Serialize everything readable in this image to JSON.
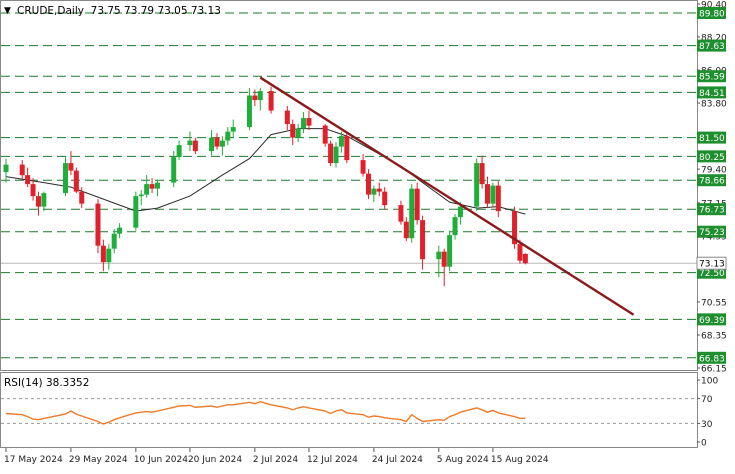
{
  "header": {
    "symbol": "CRUDE",
    "timeframe": "Daily",
    "ohlc_text": "73.75 73.79 73.05 73.13",
    "arrow_glyph": "▼"
  },
  "rsi_header": {
    "label": "RSI(14)",
    "value": "38.3352"
  },
  "colors": {
    "bull": "#1fae3a",
    "bear": "#e0202a",
    "trendline": "#8b1a1a",
    "ma": "#2b2b2b",
    "rsi": "#f07a28",
    "level_line": "#1a7a2a",
    "level_box": "#1e8f2e"
  },
  "chart_data": [
    {
      "type": "candlestick",
      "title": "CRUDE,Daily",
      "y_range": [
        66.15,
        90.4
      ],
      "y_ticks": [
        "90.40",
        "88.20",
        "86.00",
        "83.80",
        "81.50",
        "79.40",
        "77.15",
        "74.95",
        "72.50",
        "70.55",
        "68.35",
        "66.15"
      ],
      "x_ticks": [
        "17 May 2024",
        "29 May 2024",
        "10 Jun 2024",
        "20 Jun 2024",
        "2 Jul 2024",
        "12 Jul 2024",
        "24 Jul 2024",
        "5 Aug 2024",
        "15 Aug 2024"
      ],
      "grid": false,
      "price_levels": [
        "89.80",
        "87.63",
        "85.59",
        "84.51",
        "81.50",
        "80.25",
        "78.66",
        "76.73",
        "75.23",
        "72.50",
        "69.39",
        "66.83"
      ],
      "current_price": "73.13",
      "candles": [
        {
          "d": "2024-05-17",
          "o": 79.2,
          "h": 80.1,
          "l": 78.5,
          "c": 79.7
        },
        {
          "d": "2024-05-20",
          "o": 79.7,
          "h": 80.0,
          "l": 78.7,
          "c": 79.0
        },
        {
          "d": "2024-05-21",
          "o": 79.0,
          "h": 79.5,
          "l": 78.2,
          "c": 78.4
        },
        {
          "d": "2024-05-22",
          "o": 78.4,
          "h": 78.8,
          "l": 77.3,
          "c": 77.6
        },
        {
          "d": "2024-05-23",
          "o": 77.6,
          "h": 77.9,
          "l": 76.3,
          "c": 76.9
        },
        {
          "d": "2024-05-24",
          "o": 76.9,
          "h": 77.9,
          "l": 76.6,
          "c": 77.8
        },
        {
          "d": "2024-05-28",
          "o": 77.8,
          "h": 80.2,
          "l": 77.6,
          "c": 79.8
        },
        {
          "d": "2024-05-29",
          "o": 79.8,
          "h": 80.6,
          "l": 79.0,
          "c": 79.3
        },
        {
          "d": "2024-05-30",
          "o": 79.3,
          "h": 79.5,
          "l": 77.8,
          "c": 77.9
        },
        {
          "d": "2024-05-31",
          "o": 77.9,
          "h": 78.2,
          "l": 76.8,
          "c": 77.1
        },
        {
          "d": "2024-06-03",
          "o": 77.1,
          "h": 77.4,
          "l": 73.8,
          "c": 74.3
        },
        {
          "d": "2024-06-04",
          "o": 74.3,
          "h": 74.7,
          "l": 72.6,
          "c": 73.2
        },
        {
          "d": "2024-06-05",
          "o": 73.2,
          "h": 74.4,
          "l": 72.7,
          "c": 74.1
        },
        {
          "d": "2024-06-06",
          "o": 74.1,
          "h": 75.4,
          "l": 73.8,
          "c": 75.1
        },
        {
          "d": "2024-06-07",
          "o": 75.1,
          "h": 75.8,
          "l": 74.8,
          "c": 75.5
        },
        {
          "d": "2024-06-10",
          "o": 75.5,
          "h": 77.9,
          "l": 75.3,
          "c": 77.6
        },
        {
          "d": "2024-06-11",
          "o": 77.6,
          "h": 78.0,
          "l": 77.0,
          "c": 77.7
        },
        {
          "d": "2024-06-12",
          "o": 77.7,
          "h": 79.0,
          "l": 77.5,
          "c": 78.4
        },
        {
          "d": "2024-06-13",
          "o": 78.4,
          "h": 78.8,
          "l": 77.8,
          "c": 78.1
        },
        {
          "d": "2024-06-14",
          "o": 78.1,
          "h": 78.7,
          "l": 77.6,
          "c": 78.5
        },
        {
          "d": "2024-06-17",
          "o": 78.5,
          "h": 80.6,
          "l": 78.2,
          "c": 80.2
        },
        {
          "d": "2024-06-18",
          "o": 80.2,
          "h": 81.3,
          "l": 80.0,
          "c": 81.0
        },
        {
          "d": "2024-06-20",
          "o": 81.0,
          "h": 81.9,
          "l": 80.6,
          "c": 81.3
        },
        {
          "d": "2024-06-21",
          "o": 81.3,
          "h": 81.5,
          "l": 80.4,
          "c": 80.6
        },
        {
          "d": "2024-06-24",
          "o": 80.6,
          "h": 82.0,
          "l": 80.3,
          "c": 81.5
        },
        {
          "d": "2024-06-25",
          "o": 81.5,
          "h": 81.8,
          "l": 80.7,
          "c": 80.9
        },
        {
          "d": "2024-06-26",
          "o": 80.9,
          "h": 81.6,
          "l": 80.3,
          "c": 81.3
        },
        {
          "d": "2024-06-27",
          "o": 81.3,
          "h": 82.2,
          "l": 81.0,
          "c": 81.9
        },
        {
          "d": "2024-06-28",
          "o": 81.9,
          "h": 82.7,
          "l": 81.5,
          "c": 82.2
        },
        {
          "d": "2024-07-01",
          "o": 82.2,
          "h": 84.8,
          "l": 82.0,
          "c": 84.3
        },
        {
          "d": "2024-07-02",
          "o": 84.3,
          "h": 84.7,
          "l": 83.6,
          "c": 84.0
        },
        {
          "d": "2024-07-03",
          "o": 84.0,
          "h": 84.8,
          "l": 83.3,
          "c": 84.6
        },
        {
          "d": "2024-07-05",
          "o": 84.6,
          "h": 84.9,
          "l": 83.1,
          "c": 83.3
        },
        {
          "d": "2024-07-08",
          "o": 83.3,
          "h": 83.6,
          "l": 82.0,
          "c": 82.4
        },
        {
          "d": "2024-07-09",
          "o": 82.4,
          "h": 82.7,
          "l": 81.0,
          "c": 81.5
        },
        {
          "d": "2024-07-10",
          "o": 81.5,
          "h": 82.4,
          "l": 81.2,
          "c": 82.1
        },
        {
          "d": "2024-07-11",
          "o": 82.1,
          "h": 83.2,
          "l": 81.8,
          "c": 82.8
        },
        {
          "d": "2024-07-12",
          "o": 82.8,
          "h": 83.3,
          "l": 82.0,
          "c": 82.3
        },
        {
          "d": "2024-07-15",
          "o": 82.3,
          "h": 82.4,
          "l": 80.9,
          "c": 81.1
        },
        {
          "d": "2024-07-16",
          "o": 81.1,
          "h": 81.3,
          "l": 79.6,
          "c": 79.8
        },
        {
          "d": "2024-07-17",
          "o": 79.8,
          "h": 81.2,
          "l": 79.5,
          "c": 80.9
        },
        {
          "d": "2024-07-18",
          "o": 80.9,
          "h": 81.9,
          "l": 80.5,
          "c": 81.6
        },
        {
          "d": "2024-07-19",
          "o": 81.6,
          "h": 81.8,
          "l": 79.8,
          "c": 80.0
        },
        {
          "d": "2024-07-22",
          "o": 80.0,
          "h": 80.4,
          "l": 78.9,
          "c": 79.1
        },
        {
          "d": "2024-07-23",
          "o": 79.1,
          "h": 79.4,
          "l": 77.4,
          "c": 77.7
        },
        {
          "d": "2024-07-24",
          "o": 77.7,
          "h": 78.3,
          "l": 77.2,
          "c": 78.1
        },
        {
          "d": "2024-07-25",
          "o": 78.1,
          "h": 78.5,
          "l": 77.6,
          "c": 77.9
        },
        {
          "d": "2024-07-26",
          "o": 77.9,
          "h": 78.2,
          "l": 76.7,
          "c": 77.0
        },
        {
          "d": "2024-07-29",
          "o": 77.0,
          "h": 77.3,
          "l": 75.7,
          "c": 75.9
        },
        {
          "d": "2024-07-30",
          "o": 75.9,
          "h": 76.2,
          "l": 74.6,
          "c": 74.8
        },
        {
          "d": "2024-07-31",
          "o": 74.8,
          "h": 78.4,
          "l": 74.5,
          "c": 78.1
        },
        {
          "d": "2024-08-01",
          "o": 78.1,
          "h": 78.5,
          "l": 75.7,
          "c": 76.0
        },
        {
          "d": "2024-08-02",
          "o": 76.0,
          "h": 76.3,
          "l": 72.7,
          "c": 73.4
        },
        {
          "d": "2024-08-05",
          "o": 73.4,
          "h": 74.3,
          "l": 72.2,
          "c": 73.9
        },
        {
          "d": "2024-08-06",
          "o": 73.9,
          "h": 74.1,
          "l": 71.6,
          "c": 72.9
        },
        {
          "d": "2024-08-07",
          "o": 72.9,
          "h": 75.3,
          "l": 72.6,
          "c": 75.0
        },
        {
          "d": "2024-08-08",
          "o": 75.0,
          "h": 76.4,
          "l": 74.7,
          "c": 76.2
        },
        {
          "d": "2024-08-09",
          "o": 76.2,
          "h": 77.2,
          "l": 75.7,
          "c": 76.9
        },
        {
          "d": "2024-08-12",
          "o": 76.9,
          "h": 80.1,
          "l": 76.6,
          "c": 79.8
        },
        {
          "d": "2024-08-13",
          "o": 79.8,
          "h": 80.3,
          "l": 78.1,
          "c": 78.4
        },
        {
          "d": "2024-08-14",
          "o": 78.4,
          "h": 78.9,
          "l": 76.8,
          "c": 77.1
        },
        {
          "d": "2024-08-15",
          "o": 77.1,
          "h": 78.5,
          "l": 76.9,
          "c": 78.3
        },
        {
          "d": "2024-08-16",
          "o": 78.3,
          "h": 78.6,
          "l": 76.2,
          "c": 76.6
        },
        {
          "d": "2024-08-19",
          "o": 76.6,
          "h": 76.9,
          "l": 74.1,
          "c": 74.4
        },
        {
          "d": "2024-08-20",
          "o": 74.4,
          "h": 74.7,
          "l": 73.1,
          "c": 73.3
        },
        {
          "d": "2024-08-21",
          "o": 73.75,
          "h": 73.79,
          "l": 73.05,
          "c": 73.13
        }
      ],
      "ma": [
        {
          "d": "2024-05-17",
          "v": 78.9
        },
        {
          "d": "2024-05-24",
          "v": 78.5
        },
        {
          "d": "2024-05-29",
          "v": 78.2
        },
        {
          "d": "2024-06-04",
          "v": 77.4
        },
        {
          "d": "2024-06-10",
          "v": 76.6
        },
        {
          "d": "2024-06-14",
          "v": 76.8
        },
        {
          "d": "2024-06-20",
          "v": 77.6
        },
        {
          "d": "2024-06-26",
          "v": 79.0
        },
        {
          "d": "2024-07-01",
          "v": 80.1
        },
        {
          "d": "2024-07-05",
          "v": 81.7
        },
        {
          "d": "2024-07-10",
          "v": 82.1
        },
        {
          "d": "2024-07-15",
          "v": 82.1
        },
        {
          "d": "2024-07-19",
          "v": 81.6
        },
        {
          "d": "2024-07-24",
          "v": 80.6
        },
        {
          "d": "2024-07-29",
          "v": 79.6
        },
        {
          "d": "2024-08-02",
          "v": 78.5
        },
        {
          "d": "2024-08-07",
          "v": 77.2
        },
        {
          "d": "2024-08-12",
          "v": 76.8
        },
        {
          "d": "2024-08-16",
          "v": 76.9
        },
        {
          "d": "2024-08-21",
          "v": 76.4
        }
      ],
      "trendline": [
        {
          "d": "2024-07-03",
          "v": 85.5
        },
        {
          "d": "2024-09-10",
          "v": 69.7
        }
      ]
    },
    {
      "type": "line",
      "title": "RSI(14) 38.3352",
      "y_range": [
        0,
        100
      ],
      "y_ticks": [
        "100",
        "70",
        "30",
        "0"
      ],
      "reference_levels": [
        70,
        30
      ],
      "series": [
        {
          "name": "RSI(14)",
          "points": [
            {
              "d": "2024-05-17",
              "v": 46
            },
            {
              "d": "2024-05-20",
              "v": 44
            },
            {
              "d": "2024-05-21",
              "v": 41
            },
            {
              "d": "2024-05-22",
              "v": 37
            },
            {
              "d": "2024-05-23",
              "v": 36
            },
            {
              "d": "2024-05-24",
              "v": 38
            },
            {
              "d": "2024-05-28",
              "v": 45
            },
            {
              "d": "2024-05-29",
              "v": 50
            },
            {
              "d": "2024-05-30",
              "v": 45
            },
            {
              "d": "2024-05-31",
              "v": 42
            },
            {
              "d": "2024-06-03",
              "v": 33
            },
            {
              "d": "2024-06-04",
              "v": 29
            },
            {
              "d": "2024-06-05",
              "v": 32
            },
            {
              "d": "2024-06-06",
              "v": 36
            },
            {
              "d": "2024-06-07",
              "v": 39
            },
            {
              "d": "2024-06-10",
              "v": 47
            },
            {
              "d": "2024-06-11",
              "v": 48
            },
            {
              "d": "2024-06-12",
              "v": 49
            },
            {
              "d": "2024-06-13",
              "v": 48
            },
            {
              "d": "2024-06-14",
              "v": 50
            },
            {
              "d": "2024-06-17",
              "v": 56
            },
            {
              "d": "2024-06-18",
              "v": 58
            },
            {
              "d": "2024-06-20",
              "v": 59
            },
            {
              "d": "2024-06-21",
              "v": 56
            },
            {
              "d": "2024-06-24",
              "v": 58
            },
            {
              "d": "2024-06-25",
              "v": 56
            },
            {
              "d": "2024-06-26",
              "v": 58
            },
            {
              "d": "2024-06-27",
              "v": 60
            },
            {
              "d": "2024-06-28",
              "v": 60
            },
            {
              "d": "2024-07-01",
              "v": 64
            },
            {
              "d": "2024-07-02",
              "v": 62
            },
            {
              "d": "2024-07-03",
              "v": 65
            },
            {
              "d": "2024-07-05",
              "v": 60
            },
            {
              "d": "2024-07-08",
              "v": 55
            },
            {
              "d": "2024-07-09",
              "v": 52
            },
            {
              "d": "2024-07-10",
              "v": 55
            },
            {
              "d": "2024-07-11",
              "v": 57
            },
            {
              "d": "2024-07-12",
              "v": 55
            },
            {
              "d": "2024-07-15",
              "v": 50
            },
            {
              "d": "2024-07-16",
              "v": 46
            },
            {
              "d": "2024-07-17",
              "v": 50
            },
            {
              "d": "2024-07-18",
              "v": 52
            },
            {
              "d": "2024-07-19",
              "v": 47
            },
            {
              "d": "2024-07-22",
              "v": 44
            },
            {
              "d": "2024-07-23",
              "v": 40
            },
            {
              "d": "2024-07-24",
              "v": 42
            },
            {
              "d": "2024-07-25",
              "v": 41
            },
            {
              "d": "2024-07-26",
              "v": 39
            },
            {
              "d": "2024-07-29",
              "v": 36
            },
            {
              "d": "2024-07-30",
              "v": 33
            },
            {
              "d": "2024-07-31",
              "v": 44
            },
            {
              "d": "2024-08-01",
              "v": 38
            },
            {
              "d": "2024-08-02",
              "v": 33
            },
            {
              "d": "2024-08-05",
              "v": 36
            },
            {
              "d": "2024-08-06",
              "v": 35
            },
            {
              "d": "2024-08-07",
              "v": 41
            },
            {
              "d": "2024-08-08",
              "v": 44
            },
            {
              "d": "2024-08-09",
              "v": 48
            },
            {
              "d": "2024-08-12",
              "v": 55
            },
            {
              "d": "2024-08-13",
              "v": 52
            },
            {
              "d": "2024-08-14",
              "v": 48
            },
            {
              "d": "2024-08-15",
              "v": 51
            },
            {
              "d": "2024-08-16",
              "v": 47
            },
            {
              "d": "2024-08-19",
              "v": 41
            },
            {
              "d": "2024-08-20",
              "v": 38
            },
            {
              "d": "2024-08-21",
              "v": 38.3352
            }
          ]
        }
      ]
    }
  ]
}
